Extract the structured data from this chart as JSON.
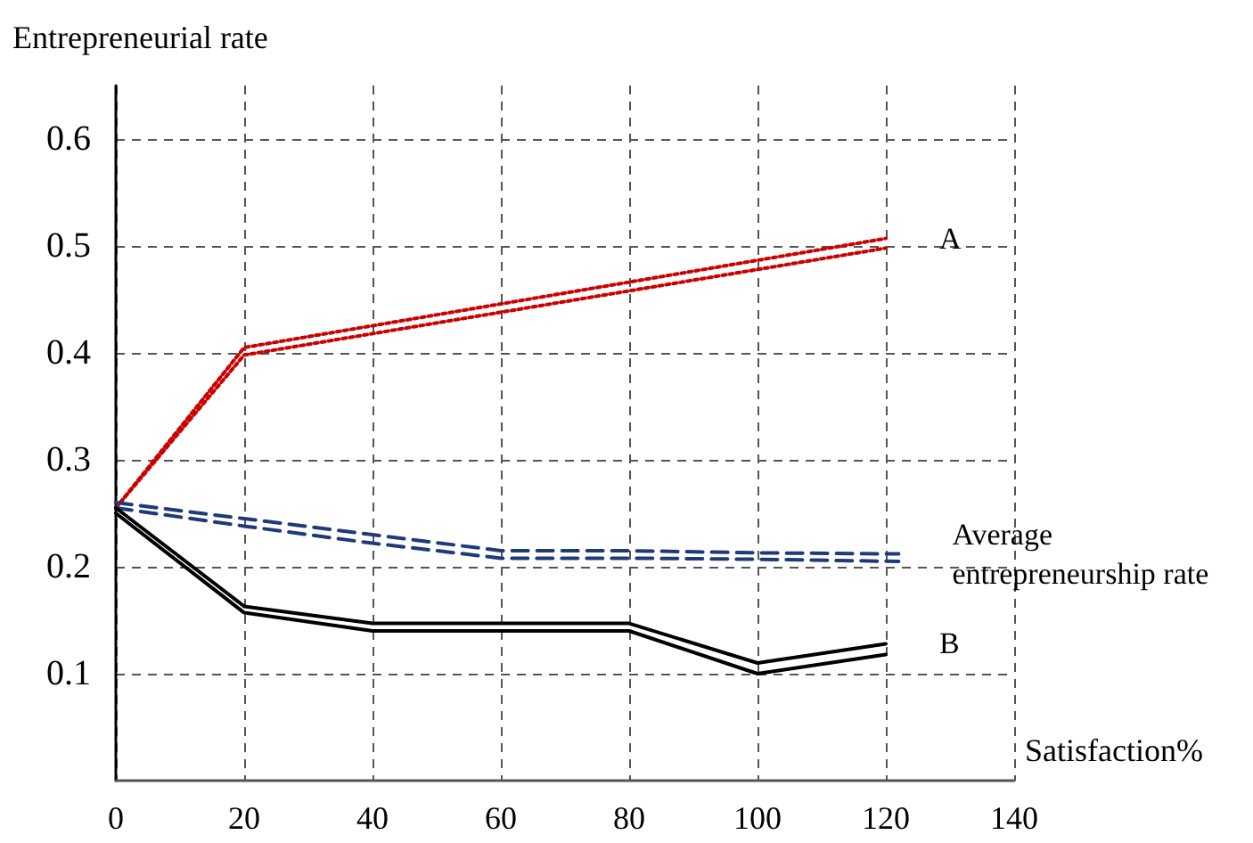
{
  "chart_data": {
    "type": "line",
    "xlabel": "Satisfaction%",
    "ylabel": "Entrepreneurial rate",
    "xlim": [
      0,
      140
    ],
    "xticks": [
      0,
      20,
      40,
      60,
      80,
      100,
      120,
      140
    ],
    "ylim": [
      0,
      0.65
    ],
    "yticks": [
      0.1,
      0.2,
      0.3,
      0.4,
      0.5,
      0.6
    ],
    "grid": true,
    "legend": false,
    "marker": "none",
    "series": [
      {
        "name": "A",
        "color": "#cc0000",
        "line_style": "dotted",
        "x": [
          0,
          20,
          120
        ],
        "values": [
          0.255,
          0.405,
          0.507
        ]
      },
      {
        "color": "#cc0000",
        "line_style": "dotted",
        "x": [
          0,
          20,
          120
        ],
        "values": [
          0.255,
          0.398,
          0.498
        ]
      },
      {
        "name": "Average entrepreneurship rate",
        "color": "#1f3a7a",
        "line_style": "dashed",
        "x": [
          0,
          20,
          40,
          60,
          80,
          100,
          122
        ],
        "values": [
          0.26,
          0.245,
          0.23,
          0.215,
          0.215,
          0.213,
          0.212
        ]
      },
      {
        "color": "#1f3a7a",
        "line_style": "dashed",
        "x": [
          0,
          20,
          40,
          60,
          80,
          100,
          122
        ],
        "values": [
          0.255,
          0.238,
          0.222,
          0.208,
          0.208,
          0.207,
          0.205
        ]
      },
      {
        "name": "B",
        "color": "#000000",
        "line_style": "solid",
        "x": [
          0,
          20,
          40,
          60,
          80,
          100,
          120
        ],
        "values": [
          0.255,
          0.163,
          0.147,
          0.147,
          0.147,
          0.11,
          0.128
        ]
      },
      {
        "color": "#000000",
        "line_style": "solid",
        "x": [
          0,
          20,
          40,
          60,
          80,
          100,
          120
        ],
        "values": [
          0.25,
          0.157,
          0.14,
          0.14,
          0.14,
          0.1,
          0.118
        ]
      }
    ]
  }
}
